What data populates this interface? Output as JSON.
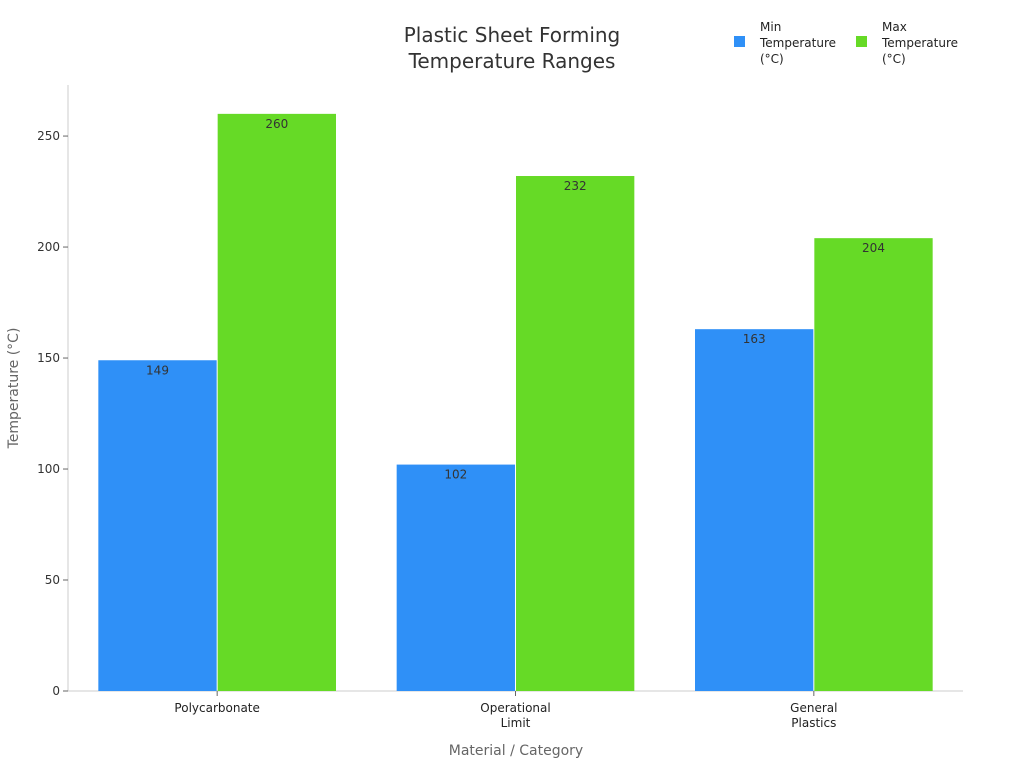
{
  "chart_data": {
    "type": "bar",
    "title": [
      "Plastic Sheet Forming",
      "Temperature Ranges"
    ],
    "xlabel": "Material / Category",
    "ylabel": "Temperature (°C)",
    "categories": [
      [
        "Polycarbonate"
      ],
      [
        "Operational",
        "Limit"
      ],
      [
        "General",
        "Plastics"
      ]
    ],
    "series": [
      {
        "name": [
          "Min",
          "Temperature",
          "(°C)"
        ],
        "color": "#2f90f7",
        "values": [
          149,
          102,
          163
        ]
      },
      {
        "name": [
          "Max",
          "Temperature",
          "(°C)"
        ],
        "color": "#66da26",
        "values": [
          260,
          232,
          204
        ]
      }
    ],
    "ylim": [
      0,
      273
    ],
    "yticks": [
      0,
      50,
      100,
      150,
      200,
      250
    ],
    "grid": false,
    "legend": "top-right",
    "data_labels": true
  }
}
